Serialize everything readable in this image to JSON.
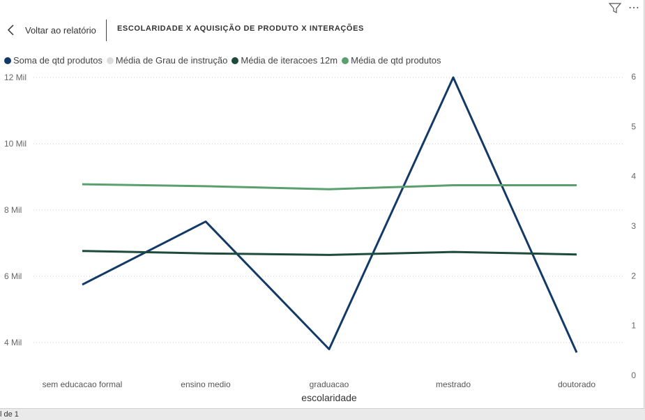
{
  "header": {
    "back_label": "Voltar ao relatório",
    "title": "ESCOLARIDADE X AQUISIÇÃO DE PRODUTO X INTERAÇÕES"
  },
  "footer": {
    "page_text": "l de 1"
  },
  "icons": {
    "filter": "filter-icon",
    "more": "more-options-icon",
    "back": "chevron-left-icon"
  },
  "chart_data": {
    "type": "line",
    "categories": [
      "sem educacao formal",
      "ensino medio",
      "graduacao",
      "mestrado",
      "doutorado"
    ],
    "xlabel": "escolaridade",
    "ylabel": "",
    "y_left": {
      "ticks": [
        "4 Mil",
        "6 Mil",
        "8 Mil",
        "10 Mil",
        "12 Mil"
      ],
      "tick_values": [
        4000,
        6000,
        8000,
        10000,
        12000
      ]
    },
    "y_right": {
      "ticks": [
        "0",
        "1",
        "2",
        "3",
        "4",
        "5",
        "6"
      ],
      "tick_values": [
        0,
        1,
        2,
        3,
        4,
        5,
        6
      ]
    },
    "grid": true,
    "legend_position": "top-left",
    "series": [
      {
        "name": "Soma de qtd produtos",
        "color": "#133a66",
        "axis": "left",
        "values": [
          5750,
          7650,
          3800,
          12000,
          3700
        ]
      },
      {
        "name": "Média de Grau de instrução",
        "color": "#dcdcdc",
        "axis": "right",
        "values": [
          null,
          null,
          null,
          null,
          null
        ]
      },
      {
        "name": "Média de iteracoes 12m",
        "color": "#1d4a3a",
        "axis": "right",
        "values": [
          2.5,
          2.45,
          2.42,
          2.48,
          2.43
        ]
      },
      {
        "name": "Média de qtd produtos",
        "color": "#5aa06f",
        "axis": "right",
        "values": [
          3.84,
          3.8,
          3.74,
          3.82,
          3.82
        ]
      }
    ]
  }
}
